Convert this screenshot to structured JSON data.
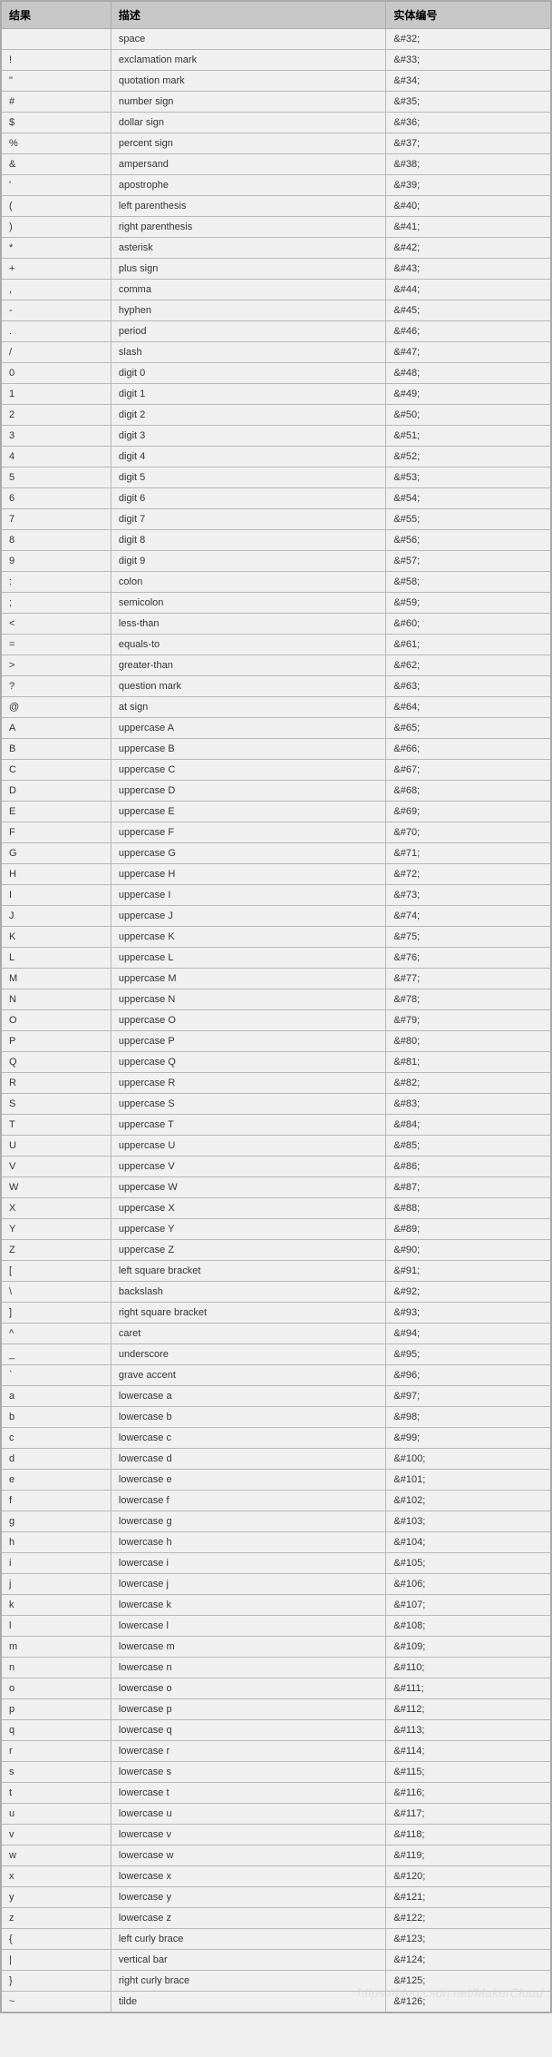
{
  "table": {
    "headers": [
      "结果",
      "描述",
      "实体编号"
    ],
    "header_bg": "#c8c8c8",
    "border_color": "#a9a9a9",
    "row_bg": "#f0f0f0",
    "font_size_header": 12,
    "font_size_cell": 11,
    "col_widths": [
      "20%",
      "50%",
      "30%"
    ],
    "rows": [
      [
        "",
        "space",
        "&#32;"
      ],
      [
        "!",
        "exclamation mark",
        "&#33;"
      ],
      [
        "\"",
        "quotation mark",
        "&#34;"
      ],
      [
        "#",
        "number sign",
        "&#35;"
      ],
      [
        "$",
        "dollar sign",
        "&#36;"
      ],
      [
        "%",
        "percent sign",
        "&#37;"
      ],
      [
        "&",
        "ampersand",
        "&#38;"
      ],
      [
        "'",
        "apostrophe",
        "&#39;"
      ],
      [
        "(",
        "left parenthesis",
        "&#40;"
      ],
      [
        ")",
        "right parenthesis",
        "&#41;"
      ],
      [
        "*",
        "asterisk",
        "&#42;"
      ],
      [
        "+",
        "plus sign",
        "&#43;"
      ],
      [
        ",",
        "comma",
        "&#44;"
      ],
      [
        "-",
        "hyphen",
        "&#45;"
      ],
      [
        ".",
        "period",
        "&#46;"
      ],
      [
        "/",
        "slash",
        "&#47;"
      ],
      [
        "0",
        "digit 0",
        "&#48;"
      ],
      [
        "1",
        "digit 1",
        "&#49;"
      ],
      [
        "2",
        "digit 2",
        "&#50;"
      ],
      [
        "3",
        "digit 3",
        "&#51;"
      ],
      [
        "4",
        "digit 4",
        "&#52;"
      ],
      [
        "5",
        "digit 5",
        "&#53;"
      ],
      [
        "6",
        "digit 6",
        "&#54;"
      ],
      [
        "7",
        "digit 7",
        "&#55;"
      ],
      [
        "8",
        "digit 8",
        "&#56;"
      ],
      [
        "9",
        "digit 9",
        "&#57;"
      ],
      [
        ":",
        "colon",
        "&#58;"
      ],
      [
        ";",
        "semicolon",
        "&#59;"
      ],
      [
        "<",
        "less-than",
        "&#60;"
      ],
      [
        "=",
        "equals-to",
        "&#61;"
      ],
      [
        ">",
        "greater-than",
        "&#62;"
      ],
      [
        "?",
        "question mark",
        "&#63;"
      ],
      [
        "@",
        "at sign",
        "&#64;"
      ],
      [
        "A",
        "uppercase A",
        "&#65;"
      ],
      [
        "B",
        "uppercase B",
        "&#66;"
      ],
      [
        "C",
        "uppercase C",
        "&#67;"
      ],
      [
        "D",
        "uppercase D",
        "&#68;"
      ],
      [
        "E",
        "uppercase E",
        "&#69;"
      ],
      [
        "F",
        "uppercase F",
        "&#70;"
      ],
      [
        "G",
        "uppercase G",
        "&#71;"
      ],
      [
        "H",
        "uppercase H",
        "&#72;"
      ],
      [
        "I",
        "uppercase I",
        "&#73;"
      ],
      [
        "J",
        "uppercase J",
        "&#74;"
      ],
      [
        "K",
        "uppercase K",
        "&#75;"
      ],
      [
        "L",
        "uppercase L",
        "&#76;"
      ],
      [
        "M",
        "uppercase M",
        "&#77;"
      ],
      [
        "N",
        "uppercase N",
        "&#78;"
      ],
      [
        "O",
        "uppercase O",
        "&#79;"
      ],
      [
        "P",
        "uppercase P",
        "&#80;"
      ],
      [
        "Q",
        "uppercase Q",
        "&#81;"
      ],
      [
        "R",
        "uppercase R",
        "&#82;"
      ],
      [
        "S",
        "uppercase S",
        "&#83;"
      ],
      [
        "T",
        "uppercase T",
        "&#84;"
      ],
      [
        "U",
        "uppercase U",
        "&#85;"
      ],
      [
        "V",
        "uppercase V",
        "&#86;"
      ],
      [
        "W",
        "uppercase W",
        "&#87;"
      ],
      [
        "X",
        "uppercase X",
        "&#88;"
      ],
      [
        "Y",
        "uppercase Y",
        "&#89;"
      ],
      [
        "Z",
        "uppercase Z",
        "&#90;"
      ],
      [
        "[",
        "left square bracket",
        "&#91;"
      ],
      [
        "\\",
        "backslash",
        "&#92;"
      ],
      [
        "]",
        "right square bracket",
        "&#93;"
      ],
      [
        "^",
        "caret",
        "&#94;"
      ],
      [
        "_",
        "underscore",
        "&#95;"
      ],
      [
        "`",
        "grave accent",
        "&#96;"
      ],
      [
        "a",
        "lowercase a",
        "&#97;"
      ],
      [
        "b",
        "lowercase b",
        "&#98;"
      ],
      [
        "c",
        "lowercase c",
        "&#99;"
      ],
      [
        "d",
        "lowercase d",
        "&#100;"
      ],
      [
        "e",
        "lowercase e",
        "&#101;"
      ],
      [
        "f",
        "lowercase f",
        "&#102;"
      ],
      [
        "g",
        "lowercase g",
        "&#103;"
      ],
      [
        "h",
        "lowercase h",
        "&#104;"
      ],
      [
        "i",
        "lowercase i",
        "&#105;"
      ],
      [
        "j",
        "lowercase j",
        "&#106;"
      ],
      [
        "k",
        "lowercase k",
        "&#107;"
      ],
      [
        "l",
        "lowercase l",
        "&#108;"
      ],
      [
        "m",
        "lowercase m",
        "&#109;"
      ],
      [
        "n",
        "lowercase n",
        "&#110;"
      ],
      [
        "o",
        "lowercase o",
        "&#111;"
      ],
      [
        "p",
        "lowercase p",
        "&#112;"
      ],
      [
        "q",
        "lowercase q",
        "&#113;"
      ],
      [
        "r",
        "lowercase r",
        "&#114;"
      ],
      [
        "s",
        "lowercase s",
        "&#115;"
      ],
      [
        "t",
        "lowercase t",
        "&#116;"
      ],
      [
        "u",
        "lowercase u",
        "&#117;"
      ],
      [
        "v",
        "lowercase v",
        "&#118;"
      ],
      [
        "w",
        "lowercase w",
        "&#119;"
      ],
      [
        "x",
        "lowercase x",
        "&#120;"
      ],
      [
        "y",
        "lowercase y",
        "&#121;"
      ],
      [
        "z",
        "lowercase z",
        "&#122;"
      ],
      [
        "{",
        "left curly brace",
        "&#123;"
      ],
      [
        "|",
        "vertical bar",
        "&#124;"
      ],
      [
        "}",
        "right curly brace",
        "&#125;"
      ],
      [
        "~",
        "tilde",
        "&#126;"
      ]
    ]
  },
  "watermark": "https://blog.csdn.net/MakerCloud"
}
